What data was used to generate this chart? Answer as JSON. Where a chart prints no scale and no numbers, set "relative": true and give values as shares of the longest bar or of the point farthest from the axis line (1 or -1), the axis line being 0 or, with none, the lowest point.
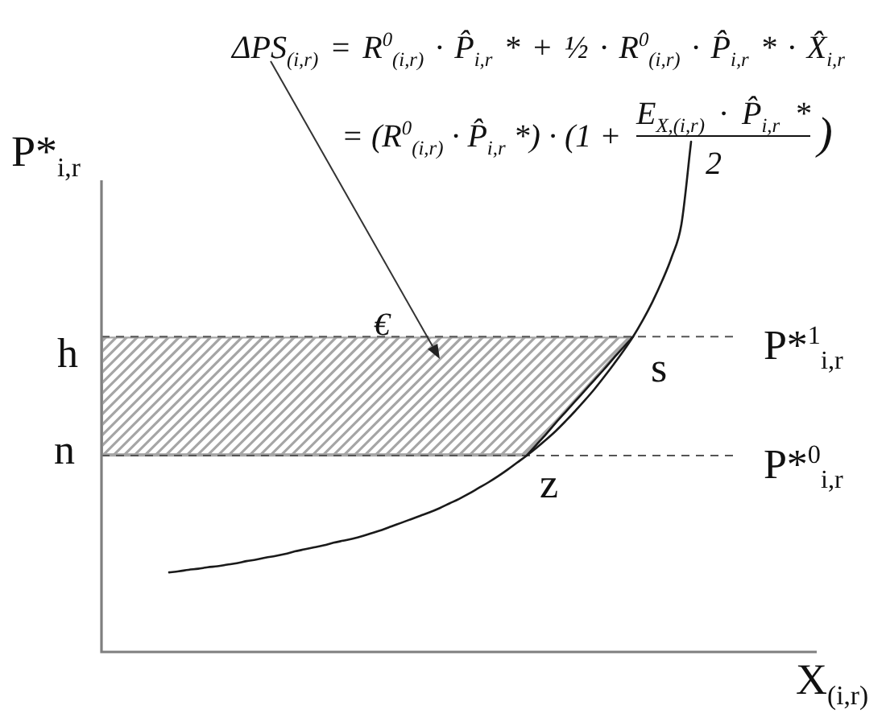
{
  "chart_data": {
    "type": "line",
    "relative": true,
    "marker": "none",
    "xlabel": "X$_{(i,r)}$",
    "ylabel": "P*$_{i,r}$",
    "categories": [
      null,
      null,
      null,
      null,
      null,
      null,
      null,
      null,
      null,
      null,
      null,
      null,
      null,
      null,
      null,
      null,
      null,
      null,
      null,
      null,
      null,
      null,
      null,
      null,
      null,
      null,
      null,
      null,
      null,
      null,
      null,
      null,
      null,
      null,
      null,
      null,
      null,
      null,
      null,
      null,
      null,
      null,
      null,
      null,
      null,
      null,
      null,
      null,
      null,
      null,
      null,
      null,
      null,
      null,
      null,
      null,
      null,
      null,
      null,
      null,
      null,
      null,
      null,
      null,
      null,
      null,
      null,
      null,
      null,
      null,
      null,
      null,
      null,
      null,
      null
    ],
    "series": [
      {
        "color": "#1a1a1a",
        "values": [
          null,
          null,
          null,
          null,
          null,
          null,
          null,
          0.156,
          0.158,
          0.161,
          0.163,
          0.166,
          0.168,
          0.171,
          0.174,
          0.178,
          0.181,
          0.185,
          0.188,
          0.192,
          0.197,
          0.201,
          0.205,
          0.209,
          0.214,
          0.218,
          0.222,
          0.227,
          0.233,
          0.239,
          0.246,
          0.253,
          0.26,
          0.267,
          0.274,
          0.282,
          0.291,
          0.3,
          0.31,
          0.321,
          0.332,
          0.344,
          0.357,
          0.371,
          0.385,
          0.4,
          0.416,
          0.433,
          0.452,
          0.472,
          0.493,
          0.515,
          0.539,
          0.564,
          0.59,
          0.618,
          0.65,
          0.686,
          0.727,
          0.774,
          0.838,
          1,
          null,
          null,
          null,
          null,
          null,
          null,
          null,
          null,
          null,
          null,
          null,
          null,
          null
        ]
      },
      {
        "color": "#1a1a1a",
        "values": [
          null,
          null,
          null,
          null,
          null,
          null,
          null,
          null,
          null,
          null,
          null,
          null,
          null,
          null,
          null,
          null,
          null,
          null,
          null,
          null,
          null,
          null,
          null,
          null,
          null,
          null,
          null,
          null,
          null,
          null,
          null,
          null,
          null,
          null,
          null,
          null,
          null,
          null,
          null,
          null,
          null,
          null,
          null,
          null,
          0.385,
          0.406,
          0.427,
          0.449,
          0.47,
          0.491,
          0.512,
          0.533,
          0.554,
          0.576,
          0.597,
          0.618,
          null,
          null,
          null,
          null,
          null,
          null,
          null,
          null,
          null,
          null,
          null,
          null,
          null,
          null,
          null,
          null,
          null,
          null,
          null
        ]
      }
    ],
    "bands": [
      {
        "axis": "y",
        "from": 0.385,
        "to": 0.618,
        "color": "#a6a6a6"
      }
    ],
    "ref_lines": [
      {
        "axis": "y",
        "value": 0.618,
        "label": "P*$^{1}$$_{i,r}$",
        "line_style": "dashed",
        "color": "#555555"
      },
      {
        "axis": "y",
        "value": 0.385,
        "label": "P*$^{0}$$_{i,r}$",
        "line_style": "dashed",
        "color": "#555555"
      }
    ],
    "annotations": [
      "ΔPS$_{(i,r)}$ = R$^{0}$$_{(i,r)}$ · P̂$_{i,r}$ * + ½ · R$^{0}$$_{(i,r)}$ · P̂$_{i,r}$ * · X̂$_{i,r}$",
      "= (R$^{0}$$_{(i,r)}$ · P̂$_{i,r}$ *) · (1 +",
      "E$_{X,(i,r)}$ · P̂$_{i,r}$ *",
      "2",
      ")",
      "€",
      "h",
      "n",
      {
        "text": "s",
        "y": 0.618
      },
      {
        "text": "z",
        "y": 0.385
      }
    ]
  }
}
